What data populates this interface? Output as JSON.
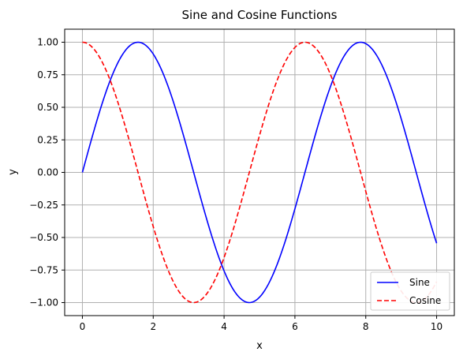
{
  "chart_data": {
    "type": "line",
    "title": "Sine and Cosine Functions",
    "xlabel": "x",
    "ylabel": "y",
    "xlim": [
      -0.5,
      10.5
    ],
    "ylim": [
      -1.1,
      1.1
    ],
    "xticks": [
      0,
      2,
      4,
      6,
      8,
      10
    ],
    "xtick_labels": [
      "0",
      "2",
      "4",
      "6",
      "8",
      "10"
    ],
    "yticks": [
      -1.0,
      -0.75,
      -0.5,
      -0.25,
      0.0,
      0.25,
      0.5,
      0.75,
      1.0
    ],
    "ytick_labels": [
      "−1.00",
      "−0.75",
      "−0.50",
      "−0.25",
      "0.00",
      "0.25",
      "0.50",
      "0.75",
      "1.00"
    ],
    "grid": true,
    "legend_position": "lower-right",
    "series": [
      {
        "name": "Sine",
        "color": "#0000ff",
        "style": "solid",
        "function": "sin",
        "x_range": [
          0,
          10
        ]
      },
      {
        "name": "Cosine",
        "color": "#ff0000",
        "style": "dashed",
        "function": "cos",
        "x_range": [
          0,
          10
        ]
      }
    ]
  }
}
